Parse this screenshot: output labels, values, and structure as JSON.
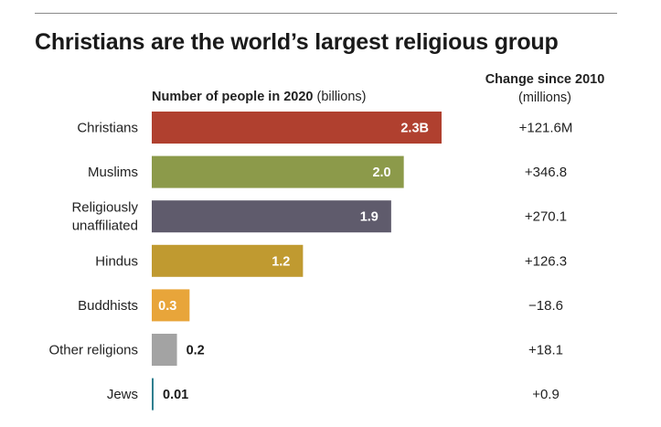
{
  "title": "Christians are the world’s largest religious group",
  "axis_header": {
    "bold": "Number of people in 2020",
    "unit": "(billions)"
  },
  "change_header": {
    "line1": "Change since 2010",
    "line2": "(millions)"
  },
  "chart_data": {
    "type": "bar",
    "orientation": "horizontal",
    "title": "Christians are the world’s largest religious group",
    "categories": [
      "Christians",
      "Muslims",
      "Religiously unaffiliated",
      "Hindus",
      "Buddhists",
      "Other religions",
      "Jews"
    ],
    "category_lines": [
      [
        "Christians"
      ],
      [
        "Muslims"
      ],
      [
        "Religiously",
        "unaffiliated"
      ],
      [
        "Hindus"
      ],
      [
        "Buddhists"
      ],
      [
        "Other religions"
      ],
      [
        "Jews"
      ]
    ],
    "values": [
      2.3,
      2.0,
      1.9,
      1.2,
      0.3,
      0.2,
      0.01
    ],
    "value_labels": [
      "2.3B",
      "2.0",
      "1.9",
      "1.2",
      "0.3",
      "0.2",
      "0.01"
    ],
    "colors": [
      "#b0402f",
      "#8c9a4a",
      "#5f5b6c",
      "#c09a30",
      "#e8a53a",
      "#a3a3a3",
      "#2f7f8f"
    ],
    "change_since_2010": [
      "+121.6M",
      "+346.8",
      "+270.1",
      "+126.3",
      "−18.6",
      "+18.1",
      "+0.9"
    ],
    "xlabel": "Number of people in 2020 (billions)",
    "ylabel": "",
    "xlim": [
      0,
      2.3
    ],
    "grid": false,
    "legend": "none"
  }
}
